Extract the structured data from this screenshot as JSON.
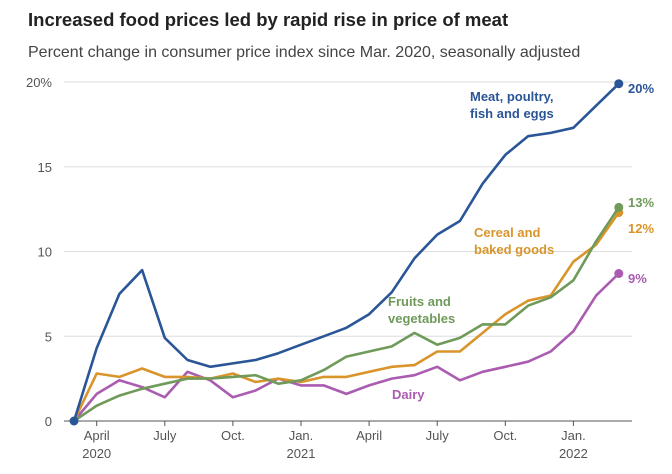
{
  "title": "Increased food prices led by rapid rise in price of meat",
  "subtitle": "Percent change in consumer price index since Mar. 2020, seasonally adjusted",
  "chart_data": {
    "type": "line",
    "title": "Increased food prices led by rapid rise in price of meat",
    "subtitle": "Percent change in consumer price index since Mar. 2020, seasonally adjusted",
    "x": [
      "2020-03",
      "2020-04",
      "2020-05",
      "2020-06",
      "2020-07",
      "2020-08",
      "2020-09",
      "2020-10",
      "2020-11",
      "2020-12",
      "2021-01",
      "2021-02",
      "2021-03",
      "2021-04",
      "2021-05",
      "2021-06",
      "2021-07",
      "2021-08",
      "2021-09",
      "2021-10",
      "2021-11",
      "2021-12",
      "2022-01",
      "2022-02",
      "2022-03"
    ],
    "xtick_labels": [
      {
        "month": "2020-04",
        "label": "April",
        "year": "2020"
      },
      {
        "month": "2020-07",
        "label": "July",
        "year": ""
      },
      {
        "month": "2020-10",
        "label": "Oct.",
        "year": ""
      },
      {
        "month": "2021-01",
        "label": "Jan.",
        "year": "2021"
      },
      {
        "month": "2021-04",
        "label": "April",
        "year": ""
      },
      {
        "month": "2021-07",
        "label": "July",
        "year": ""
      },
      {
        "month": "2021-10",
        "label": "Oct.",
        "year": ""
      },
      {
        "month": "2022-01",
        "label": "Jan.",
        "year": "2022"
      }
    ],
    "yticks": [
      0,
      5,
      10,
      15,
      20
    ],
    "ytick_labels": [
      "0",
      "5",
      "10",
      "15",
      "20%"
    ],
    "ylim": [
      0,
      20
    ],
    "grid": true,
    "series": [
      {
        "name": "Meat, poultry, fish and eggs",
        "label_lines": [
          "Meat, poultry,",
          "fish and eggs"
        ],
        "end_label": "20%",
        "color": "#2a5597",
        "values": [
          0,
          4.3,
          7.5,
          8.9,
          4.9,
          3.6,
          3.2,
          3.4,
          3.6,
          4.0,
          4.5,
          5.0,
          5.5,
          6.3,
          7.6,
          9.6,
          11.0,
          11.8,
          14.0,
          15.7,
          16.8,
          17.0,
          17.3,
          18.6,
          19.9
        ]
      },
      {
        "name": "Fruits and vegetables",
        "label_lines": [
          "Fruits and",
          "vegetables"
        ],
        "end_label": "13%",
        "color": "#6f9a59",
        "values": [
          0,
          0.9,
          1.5,
          1.9,
          2.2,
          2.5,
          2.5,
          2.6,
          2.7,
          2.2,
          2.4,
          3.0,
          3.8,
          4.1,
          4.4,
          5.2,
          4.5,
          4.9,
          5.7,
          5.7,
          6.8,
          7.3,
          8.3,
          10.6,
          12.6
        ]
      },
      {
        "name": "Cereal and baked goods",
        "label_lines": [
          "Cereal and",
          "baked goods"
        ],
        "end_label": "12%",
        "color": "#d9952b",
        "values": [
          0,
          2.8,
          2.6,
          3.1,
          2.6,
          2.6,
          2.5,
          2.8,
          2.3,
          2.5,
          2.3,
          2.6,
          2.6,
          2.9,
          3.2,
          3.3,
          4.1,
          4.1,
          5.2,
          6.3,
          7.1,
          7.4,
          9.4,
          10.4,
          12.3
        ]
      },
      {
        "name": "Dairy",
        "label_lines": [
          "Dairy"
        ],
        "end_label": "9%",
        "color": "#a95cb0",
        "values": [
          0,
          1.6,
          2.4,
          2.0,
          1.4,
          2.9,
          2.4,
          1.4,
          1.8,
          2.5,
          2.1,
          2.1,
          1.6,
          2.1,
          2.5,
          2.7,
          3.2,
          2.4,
          2.9,
          3.2,
          3.5,
          4.1,
          5.3,
          7.4,
          8.7
        ]
      }
    ]
  }
}
